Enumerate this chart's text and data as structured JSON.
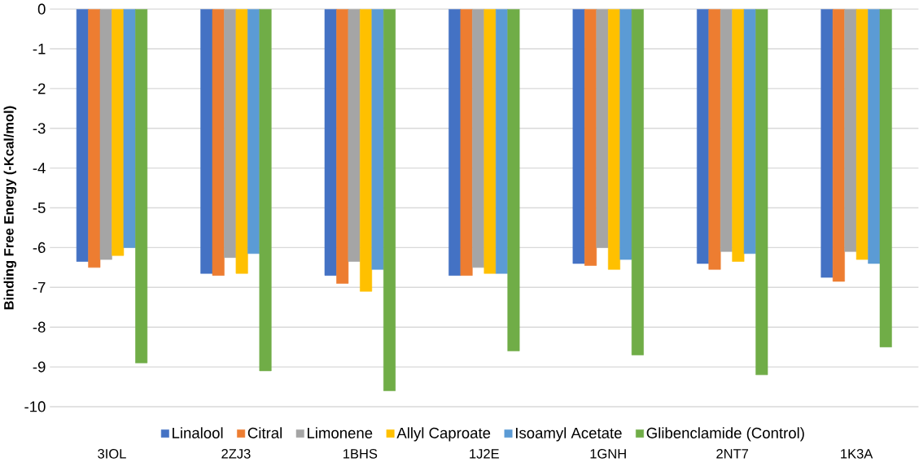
{
  "chart_data": {
    "type": "bar",
    "ylabel": "Binding Free Energy (-Kcal/mol)",
    "categories": [
      "3IOL",
      "2ZJ3",
      "1BHS",
      "1J2E",
      "1GNH",
      "2NT7",
      "1K3A"
    ],
    "series": [
      {
        "name": "Linalool",
        "color": "#4472c4",
        "values": [
          -6.35,
          -6.65,
          -6.7,
          -6.7,
          -6.4,
          -6.4,
          -6.75
        ]
      },
      {
        "name": "Citral",
        "color": "#ed7d31",
        "values": [
          -6.5,
          -6.7,
          -6.9,
          -6.7,
          -6.45,
          -6.55,
          -6.85
        ]
      },
      {
        "name": "Limonene",
        "color": "#a5a5a5",
        "values": [
          -6.3,
          -6.25,
          -6.35,
          -6.5,
          -6.0,
          -6.1,
          -6.1
        ]
      },
      {
        "name": "Allyl Caproate",
        "color": "#ffc000",
        "values": [
          -6.2,
          -6.65,
          -7.1,
          -6.65,
          -6.55,
          -6.35,
          -6.3
        ]
      },
      {
        "name": "Isoamyl Acetate",
        "color": "#5b9bd5",
        "values": [
          -6.0,
          -6.15,
          -6.55,
          -6.65,
          -6.3,
          -6.15,
          -6.4
        ]
      },
      {
        "name": "Glibenclamide (Control)",
        "color": "#70ad47",
        "values": [
          -8.9,
          -9.1,
          -9.6,
          -8.6,
          -8.7,
          -9.2,
          -8.5
        ]
      }
    ],
    "ylim": [
      -10,
      0
    ],
    "yticks": [
      0,
      -1,
      -2,
      -3,
      -4,
      -5,
      -6,
      -7,
      -8,
      -9,
      -10
    ],
    "grid": "y",
    "legend": "bottom"
  }
}
